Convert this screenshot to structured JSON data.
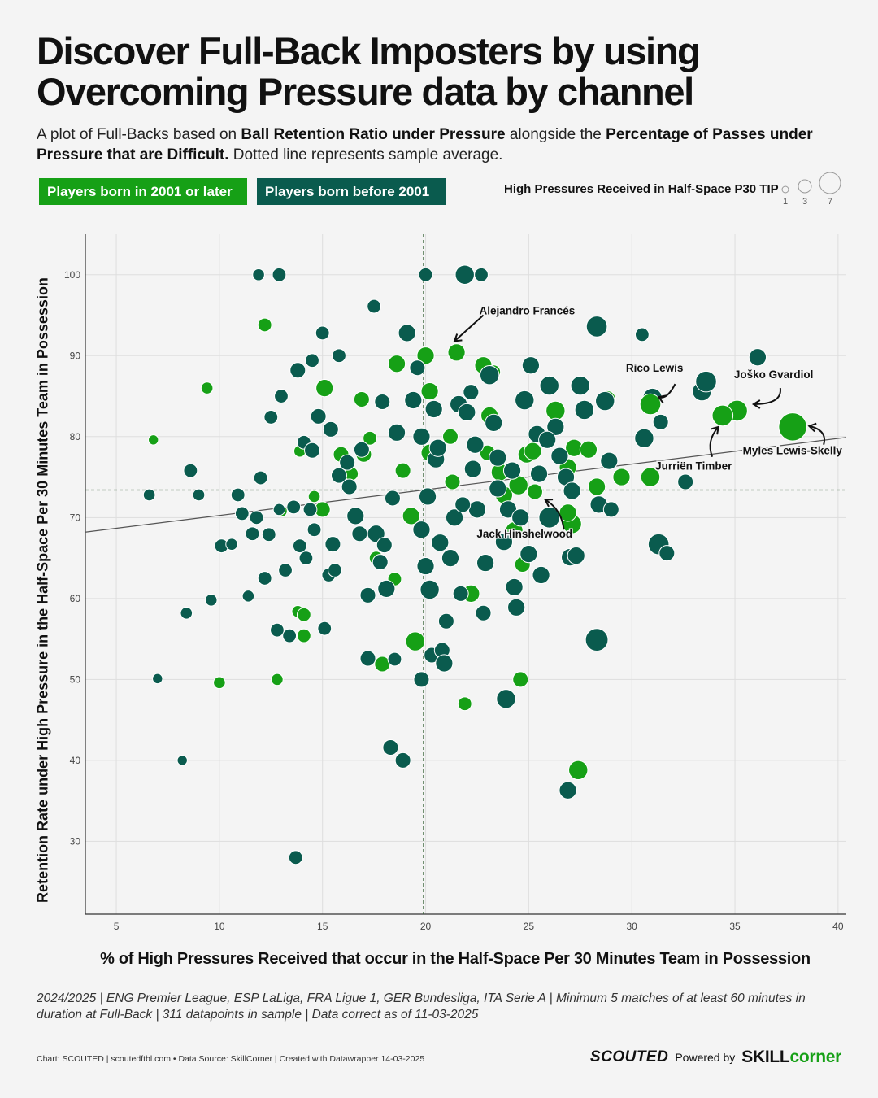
{
  "title": "Discover Full-Back Imposters by using Overcoming Pressure data by channel",
  "subtitle": {
    "p1": "A plot of Full-Backs based on ",
    "b1": "Ball Retention Ratio under Pressure",
    "p2": " alongside the ",
    "b2": "Percentage of Passes under Pressure that are Difficult.",
    "p3": " Dotted line represents sample average."
  },
  "legend": {
    "young": "Players born in 2001 or later",
    "old": "Players born before 2001",
    "size_title": "High Pressures Received in Half-Space P30 TIP",
    "size_values": [
      "1",
      "3",
      "7"
    ]
  },
  "colors": {
    "young": "#16a016",
    "old": "#0a5b4e"
  },
  "note": "2024/2025 | ENG Premier League, ESP LaLiga, FRA Ligue 1, GER Bundesliga, ITA Serie A | Minimum 5 matches of at least 60 minutes in duration at Full-Back | 311 datapoints in sample | Data correct as of 11-03-2025",
  "credits": "Chart: SCOUTED | scoutedftbl.com • Data Source: SkillCorner | Created with Datawrapper 14-03-2025",
  "brand": {
    "scouted": "SCOUTED",
    "powered": "Powered by",
    "skill": "SKILL",
    "corner": "corner"
  },
  "chart_data": {
    "type": "scatter",
    "xlabel": "% of High Pressures Received that occur in the Half-Space Per 30 Minutes Team in Possession",
    "ylabel": "Retention Rate under High Pressure in the Half-Space Per 30 Minutes Team in Possession",
    "xlim": [
      3.5,
      40.4
    ],
    "ylim": [
      21,
      105
    ],
    "xticks": [
      5,
      10,
      15,
      20,
      25,
      30,
      35,
      40
    ],
    "yticks": [
      30,
      40,
      50,
      60,
      70,
      80,
      90,
      100
    ],
    "grid": true,
    "avg_x": 19.9,
    "avg_y": 73.4,
    "trend": [
      [
        3.5,
        68.2
      ],
      [
        40.4,
        79.9
      ]
    ],
    "size_field": "High Pressures Received in Half-Space P30 TIP",
    "labels": [
      {
        "text": "Alejandro Francés",
        "x": 22.6,
        "y": 95.5
      },
      {
        "text": "Rico Lewis",
        "x": 31.1,
        "y": 88.4
      },
      {
        "text": "Joško Gvardiol",
        "x": 38.8,
        "y": 87.6
      },
      {
        "text": "Myles Lewis-Skelly",
        "x": 40.2,
        "y": 78.2
      },
      {
        "text": "Jurriën Timber",
        "x": 33.0,
        "y": 76.3
      },
      {
        "text": "Jack Hinshelwood",
        "x": 24.8,
        "y": 67.9
      }
    ],
    "players": [
      {
        "name": "Alejandro Francés",
        "x": 21.5,
        "y": 90.4,
        "size": 3,
        "group": "young"
      },
      {
        "name": "Rico Lewis",
        "x": 30.9,
        "y": 84.0,
        "size": 4,
        "group": "young"
      },
      {
        "name": "Joško Gvardiol",
        "x": 35.1,
        "y": 83.2,
        "size": 4,
        "group": "young"
      },
      {
        "name": "Jurriën Timber",
        "x": 34.4,
        "y": 82.6,
        "size": 4,
        "group": "young"
      },
      {
        "name": "Myles Lewis-Skelly",
        "x": 37.8,
        "y": 81.2,
        "size": 6,
        "group": "young"
      },
      {
        "name": "Jack Hinshelwood",
        "x": 26.0,
        "y": 70.0,
        "size": 4,
        "group": "old"
      }
    ],
    "series": [
      {
        "name": "Players born in 2001 or later",
        "group": "young",
        "points": [
          [
            6.8,
            79.6,
            1
          ],
          [
            9.4,
            86.0,
            1.5
          ],
          [
            10.0,
            49.6,
            1.5
          ],
          [
            12.8,
            50.0,
            1.5
          ],
          [
            12.2,
            93.8,
            2
          ],
          [
            13.8,
            58.4,
            1.5
          ],
          [
            14.1,
            58.0,
            2
          ],
          [
            14.1,
            55.4,
            2
          ],
          [
            14.6,
            72.6,
            1.5
          ],
          [
            15.0,
            71.0,
            2.5
          ],
          [
            13.9,
            78.2,
            1.5
          ],
          [
            15.1,
            86.0,
            3
          ],
          [
            16.4,
            75.4,
            2
          ],
          [
            16.9,
            84.6,
            2.5
          ],
          [
            17.3,
            79.8,
            2
          ],
          [
            17.9,
            51.9,
            2.5
          ],
          [
            17.6,
            65.0,
            2
          ],
          [
            18.6,
            89.0,
            3
          ],
          [
            18.9,
            75.8,
            2.5
          ],
          [
            19.3,
            70.2,
            3
          ],
          [
            19.5,
            54.7,
            3.5
          ],
          [
            20.0,
            90.0,
            3
          ],
          [
            20.2,
            85.6,
            3
          ],
          [
            20.2,
            78.0,
            3
          ],
          [
            21.2,
            80.0,
            2.5
          ],
          [
            21.9,
            47.0,
            2
          ],
          [
            22.2,
            60.6,
            3
          ],
          [
            22.8,
            88.8,
            3
          ],
          [
            23.1,
            82.6,
            3
          ],
          [
            23.3,
            88.0,
            2
          ],
          [
            23.6,
            75.6,
            3
          ],
          [
            23.8,
            72.8,
            3
          ],
          [
            24.3,
            68.4,
            3
          ],
          [
            24.5,
            74.0,
            3.5
          ],
          [
            24.7,
            64.2,
            2.5
          ],
          [
            24.6,
            50.0,
            2.5
          ],
          [
            24.9,
            77.8,
            3
          ],
          [
            25.3,
            73.2,
            2.5
          ],
          [
            25.2,
            78.2,
            3
          ],
          [
            26.3,
            83.2,
            3.5
          ],
          [
            26.9,
            76.2,
            3
          ],
          [
            27.2,
            78.6,
            3
          ],
          [
            27.1,
            69.2,
            3.5
          ],
          [
            27.4,
            38.8,
            3.5
          ],
          [
            27.9,
            78.4,
            3
          ],
          [
            28.3,
            73.8,
            3
          ],
          [
            28.8,
            84.6,
            3
          ],
          [
            29.5,
            75.0,
            3
          ],
          [
            30.9,
            75.0,
            3.5
          ],
          [
            30.9,
            84.0,
            4
          ],
          [
            26.9,
            70.6,
            3
          ],
          [
            23.0,
            78.0,
            2.5
          ],
          [
            21.3,
            74.4,
            2.5
          ],
          [
            17.0,
            77.8,
            2.5
          ],
          [
            18.5,
            62.4,
            2
          ],
          [
            15.9,
            77.8,
            2.5
          ],
          [
            13.0,
            70.8,
            1.5
          ]
        ]
      },
      {
        "name": "Players born before 2001",
        "group": "old",
        "points": [
          [
            6.6,
            72.8,
            1.5
          ],
          [
            7.0,
            50.1,
            1
          ],
          [
            8.2,
            40.0,
            1
          ],
          [
            8.4,
            58.2,
            1.5
          ],
          [
            8.6,
            75.8,
            2
          ],
          [
            9.0,
            72.8,
            1.5
          ],
          [
            9.6,
            59.8,
            1.5
          ],
          [
            10.1,
            66.5,
            2
          ],
          [
            10.6,
            66.7,
            1.5
          ],
          [
            10.9,
            72.8,
            2
          ],
          [
            11.1,
            70.5,
            2
          ],
          [
            11.4,
            60.3,
            1.5
          ],
          [
            11.6,
            68.0,
            2
          ],
          [
            11.8,
            70.0,
            2
          ],
          [
            11.9,
            100.0,
            1.5
          ],
          [
            12.0,
            74.9,
            2
          ],
          [
            12.2,
            62.5,
            2
          ],
          [
            12.4,
            67.9,
            2
          ],
          [
            12.5,
            82.4,
            2
          ],
          [
            12.8,
            56.1,
            2
          ],
          [
            12.9,
            100.0,
            2
          ],
          [
            12.9,
            71.0,
            1.5
          ],
          [
            13.0,
            85.0,
            2
          ],
          [
            13.2,
            63.5,
            2
          ],
          [
            13.4,
            55.4,
            2
          ],
          [
            13.6,
            71.3,
            2
          ],
          [
            13.7,
            28.0,
            2
          ],
          [
            13.8,
            88.2,
            2.5
          ],
          [
            14.1,
            79.3,
            2
          ],
          [
            14.2,
            65.0,
            2
          ],
          [
            14.4,
            71.0,
            2
          ],
          [
            14.5,
            89.4,
            2
          ],
          [
            14.5,
            78.3,
            2.5
          ],
          [
            14.8,
            82.5,
            2.5
          ],
          [
            15.0,
            92.8,
            2
          ],
          [
            15.1,
            56.3,
            2
          ],
          [
            15.3,
            62.9,
            2
          ],
          [
            15.4,
            80.9,
            2.5
          ],
          [
            15.6,
            63.5,
            2
          ],
          [
            15.8,
            90.0,
            2
          ],
          [
            15.8,
            75.2,
            2.5
          ],
          [
            16.2,
            76.8,
            2.5
          ],
          [
            16.6,
            70.2,
            3
          ],
          [
            16.9,
            78.4,
            2.5
          ],
          [
            17.2,
            60.4,
            2.5
          ],
          [
            17.2,
            52.6,
            2.5
          ],
          [
            17.5,
            96.1,
            2
          ],
          [
            17.8,
            64.5,
            2.5
          ],
          [
            17.9,
            84.3,
            2.5
          ],
          [
            18.1,
            61.2,
            3
          ],
          [
            18.3,
            41.6,
            2.5
          ],
          [
            18.4,
            72.4,
            2.5
          ],
          [
            18.5,
            52.5,
            2
          ],
          [
            18.6,
            80.5,
            3
          ],
          [
            18.9,
            40.0,
            2.5
          ],
          [
            19.1,
            92.8,
            3
          ],
          [
            19.4,
            84.5,
            3
          ],
          [
            19.8,
            68.5,
            3
          ],
          [
            19.8,
            50.0,
            2.5
          ],
          [
            20.0,
            100.0,
            2
          ],
          [
            20.0,
            64.0,
            3
          ],
          [
            20.1,
            72.6,
            3
          ],
          [
            20.2,
            61.1,
            3.5
          ],
          [
            20.3,
            53.0,
            2.5
          ],
          [
            20.5,
            77.2,
            3
          ],
          [
            20.7,
            66.9,
            3
          ],
          [
            20.8,
            53.6,
            2.5
          ],
          [
            20.9,
            52.0,
            3
          ],
          [
            21.0,
            57.2,
            2.5
          ],
          [
            21.2,
            65.0,
            3
          ],
          [
            21.4,
            70.0,
            3
          ],
          [
            21.6,
            84.0,
            3
          ],
          [
            21.7,
            60.6,
            2.5
          ],
          [
            21.9,
            100.0,
            3.5
          ],
          [
            22.0,
            83.0,
            3
          ],
          [
            22.3,
            76.0,
            3
          ],
          [
            22.5,
            71.0,
            3
          ],
          [
            22.7,
            100.0,
            2
          ],
          [
            22.8,
            58.2,
            2.5
          ],
          [
            22.9,
            64.4,
            3
          ],
          [
            23.1,
            87.6,
            3.5
          ],
          [
            23.3,
            81.7,
            3
          ],
          [
            23.5,
            77.4,
            3
          ],
          [
            23.8,
            67.0,
            3
          ],
          [
            23.9,
            47.6,
            3.5
          ],
          [
            24.0,
            71.0,
            3
          ],
          [
            24.3,
            61.4,
            3
          ],
          [
            24.4,
            58.9,
            3
          ],
          [
            24.6,
            70.0,
            3
          ],
          [
            24.8,
            84.5,
            3.5
          ],
          [
            25.0,
            65.5,
            3
          ],
          [
            25.1,
            88.8,
            3
          ],
          [
            25.4,
            80.3,
            3
          ],
          [
            25.6,
            62.9,
            3
          ],
          [
            26.0,
            86.3,
            3.5
          ],
          [
            26.3,
            81.2,
            3
          ],
          [
            26.5,
            77.6,
            3
          ],
          [
            26.8,
            75.0,
            3
          ],
          [
            26.9,
            36.3,
            3
          ],
          [
            27.0,
            65.1,
            3
          ],
          [
            27.3,
            65.3,
            3
          ],
          [
            27.5,
            86.3,
            3.5
          ],
          [
            27.7,
            83.3,
            3.5
          ],
          [
            28.3,
            93.6,
            4
          ],
          [
            28.3,
            54.9,
            4.5
          ],
          [
            28.4,
            71.6,
            3
          ],
          [
            28.7,
            84.4,
            3.5
          ],
          [
            28.9,
            77.0,
            3
          ],
          [
            29.0,
            71.0,
            2.5
          ],
          [
            30.5,
            92.6,
            2
          ],
          [
            30.6,
            79.8,
            3.5
          ],
          [
            31.0,
            84.8,
            3.5
          ],
          [
            31.3,
            66.7,
            4
          ],
          [
            31.4,
            81.8,
            2.5
          ],
          [
            31.7,
            65.6,
            2.5
          ],
          [
            32.6,
            74.4,
            2.5
          ],
          [
            33.4,
            85.6,
            3.5
          ],
          [
            33.6,
            86.8,
            4
          ],
          [
            36.1,
            89.8,
            3
          ],
          [
            27.1,
            73.3,
            3
          ],
          [
            22.4,
            79.0,
            3
          ],
          [
            19.8,
            80.0,
            3
          ],
          [
            19.6,
            88.5,
            2.5
          ],
          [
            17.6,
            68.0,
            3
          ],
          [
            16.3,
            73.8,
            2.5
          ],
          [
            15.5,
            66.7,
            2.5
          ],
          [
            14.6,
            68.5,
            2
          ],
          [
            13.9,
            66.5,
            2
          ],
          [
            20.6,
            78.6,
            3
          ],
          [
            21.8,
            71.6,
            2.5
          ],
          [
            24.2,
            75.8,
            3
          ],
          [
            25.9,
            79.6,
            3
          ],
          [
            22.2,
            85.5,
            2.5
          ],
          [
            18.0,
            66.6,
            2.5
          ],
          [
            20.4,
            83.4,
            3
          ],
          [
            23.5,
            73.6,
            3
          ],
          [
            25.5,
            75.4,
            3
          ],
          [
            16.8,
            68.0,
            2.5
          ]
        ]
      }
    ]
  }
}
